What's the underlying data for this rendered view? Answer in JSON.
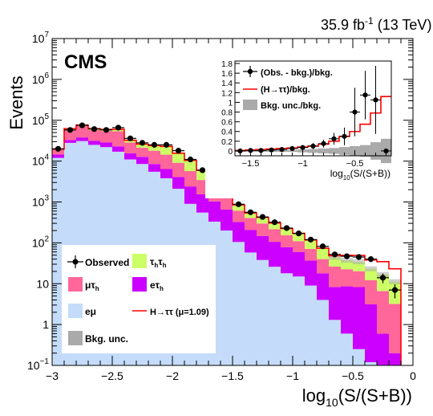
{
  "lumi_label": "35.9 fb",
  "lumi_sup": "-1",
  "lumi_energy": "(13 TeV)",
  "cms_label": "CMS",
  "colors": {
    "mutau": "#ff6699",
    "tautau": "#ccff66",
    "etau": "#cc00ff",
    "emu": "#c4dcfa",
    "signal": "#ff0000",
    "bkgunc": "#aaaaaa",
    "observed": "#000000"
  },
  "chart_data": [
    {
      "type": "bar",
      "stacked": true,
      "log_y": true,
      "xlabel_main": "log",
      "xlabel_sub": "10",
      "xlabel_rest": "(S/(S+B))",
      "ylabel": "Events",
      "xlim": [
        -3,
        0
      ],
      "ylim": [
        0.1,
        10000000
      ],
      "x_ticks": [
        -3,
        -2.5,
        -2,
        -1.5,
        -1,
        -0.5,
        0
      ],
      "x_tick_labels": [
        "−3",
        "−2.5",
        "−2",
        "−1.5",
        "−1",
        "−0.5",
        "0"
      ],
      "y_ticks": [
        0.1,
        1,
        10,
        100,
        1000,
        10000,
        100000,
        1000000,
        10000000
      ],
      "y_tick_labels": [
        {
          "base": "10",
          "exp": "−1"
        },
        {
          "base": "1",
          "exp": ""
        },
        {
          "base": "10",
          "exp": ""
        },
        {
          "base": "10",
          "exp": "2"
        },
        {
          "base": "10",
          "exp": "3"
        },
        {
          "base": "10",
          "exp": "4"
        },
        {
          "base": "10",
          "exp": "5"
        },
        {
          "base": "10",
          "exp": "6"
        },
        {
          "base": "10",
          "exp": "7"
        }
      ],
      "bin_edges": [
        -3.0,
        -2.9,
        -2.8,
        -2.7,
        -2.6,
        -2.5,
        -2.4,
        -2.3,
        -2.2,
        -2.1,
        -2.0,
        -1.9,
        -1.8,
        -1.7,
        -1.6,
        -1.5,
        -1.4,
        -1.3,
        -1.2,
        -1.1,
        -1.0,
        -0.9,
        -0.8,
        -0.7,
        -0.6,
        -0.5,
        -0.4,
        -0.3,
        -0.2,
        -0.1
      ],
      "stack_order": [
        "emu",
        "etau",
        "mutau",
        "tautau"
      ],
      "series": [
        {
          "key": "emu",
          "label": "eμ",
          "values": [
            12000,
            28000,
            31000,
            25000,
            22000,
            17000,
            11000,
            8500,
            5500,
            3800,
            2100,
            900,
            550,
            330,
            200,
            105,
            58,
            38,
            26,
            18,
            15,
            9,
            4,
            1.3,
            0.6,
            0.25,
            0.12,
            0.1,
            0.1
          ]
        },
        {
          "key": "etau",
          "label": "eτh",
          "values": [
            2500,
            5000,
            7000,
            6500,
            6500,
            6000,
            4500,
            4200,
            3000,
            2600,
            2000,
            1500,
            1000,
            700,
            450,
            220,
            150,
            110,
            80,
            60,
            45,
            28,
            14,
            7,
            8,
            8,
            3,
            0.5,
            0.1
          ]
        },
        {
          "key": "mutau",
          "label": "μτh",
          "values": [
            4500,
            26000,
            34000,
            26000,
            26000,
            31000,
            13000,
            8500,
            9500,
            8000,
            5000,
            3300,
            1900,
            1300,
            750,
            290,
            200,
            150,
            110,
            75,
            50,
            34,
            22,
            18,
            14,
            12,
            9,
            6,
            3
          ]
        },
        {
          "key": "tautau",
          "label": "τhτh",
          "values": [
            700,
            3500,
            4500,
            5000,
            5000,
            6000,
            3800,
            4800,
            6000,
            8500,
            6500,
            4700,
            2500,
            1500,
            700,
            230,
            130,
            120,
            90,
            70,
            60,
            45,
            32,
            18,
            15,
            14,
            11,
            10,
            8
          ]
        }
      ],
      "observed": {
        "label": "Observed",
        "x": [
          -2.95,
          -2.85,
          -2.75,
          -2.65,
          -2.55,
          -2.45,
          -2.35,
          -2.25,
          -2.15,
          -2.05,
          -1.95,
          -1.85,
          -1.75,
          -1.65,
          -1.55,
          -1.45,
          -1.35,
          -1.25,
          -1.15,
          -1.05,
          -0.95,
          -0.85,
          -0.75,
          -0.65,
          -0.55,
          -0.45,
          -0.35,
          -0.25,
          -0.15
        ],
        "y": [
          20000,
          58000,
          75000,
          61000,
          58000,
          66000,
          36000,
          28000,
          25000,
          25000,
          18000,
          11000,
          6000,
          3900,
          2100,
          880,
          560,
          430,
          320,
          230,
          170,
          120,
          82,
          52,
          47,
          45,
          40,
          14,
          7
        ]
      },
      "signal": {
        "label": "H→ττ (μ=1.09)",
        "label_base": "H→ττ (μ=1.09)"
      },
      "signal_excess": [
        0.5,
        0.8,
        1.0,
        1.0,
        1.0,
        1.0,
        0.9,
        0.8,
        1.0,
        1.0,
        1.0,
        0.8,
        0.7,
        0.6,
        0.5,
        0.4,
        0.4,
        0.4,
        0.4,
        0.4,
        1.0,
        1.5,
        2.0,
        4.0,
        12,
        15,
        15,
        18,
        12
      ],
      "legend": {
        "position": "bottom-left",
        "entries": [
          "Observed",
          "τhτh",
          "μτh",
          "eτh",
          "eμ",
          "H→ττ (μ=1.09)",
          "Bkg. unc."
        ],
        "observed": "Observed",
        "tautau_a": "τ",
        "tautau_b": "h",
        "tautau_c": "τ",
        "tautau_d": "h",
        "mutau_a": "μτ",
        "mutau_b": "h",
        "etau_a": "eτ",
        "etau_b": "h",
        "emu": "eμ",
        "signal": "H→ττ (μ=1.09)",
        "bkgunc": "Bkg. unc."
      }
    },
    {
      "type": "line",
      "inset": true,
      "position": "top-right",
      "xlabel_main": "log",
      "xlabel_sub": "10",
      "xlabel_rest": "(S/(S+B))",
      "xlim": [
        -1.65,
        -0.15
      ],
      "ylim": [
        -0.1,
        1.85
      ],
      "x_ticks": [
        -1.5,
        -1,
        -0.5
      ],
      "x_tick_labels": [
        "−1.5",
        "−1",
        "−0.5"
      ],
      "y_ticks": [
        0,
        0.2,
        0.4,
        0.6,
        0.8,
        1,
        1.2,
        1.4,
        1.6,
        1.8
      ],
      "y_tick_labels": [
        "0",
        "0.2",
        "0.4",
        "0.6",
        "0.8",
        "1",
        "1.2",
        "1.4",
        "1.6",
        "1.8"
      ],
      "bin_edges": [
        -1.65,
        -1.55,
        -1.45,
        -1.35,
        -1.25,
        -1.15,
        -1.05,
        -0.95,
        -0.85,
        -0.75,
        -0.65,
        -0.55,
        -0.45,
        -0.35,
        -0.25,
        -0.15
      ],
      "bkg_unc": [
        0.02,
        0.02,
        0.02,
        0.02,
        0.02,
        0.02,
        0.03,
        0.04,
        0.05,
        0.06,
        0.08,
        0.1,
        0.12,
        0.18,
        0.25
      ],
      "signal_ratio": [
        0.01,
        0.02,
        0.03,
        0.04,
        0.05,
        0.06,
        0.08,
        0.1,
        0.14,
        0.2,
        0.3,
        0.4,
        0.55,
        0.78,
        1.12
      ],
      "obs_ratio": {
        "x": [
          -1.6,
          -1.5,
          -1.4,
          -1.3,
          -1.2,
          -1.1,
          -1.0,
          -0.9,
          -0.8,
          -0.7,
          -0.6,
          -0.5,
          -0.4,
          -0.3,
          -0.2
        ],
        "y": [
          0.0,
          0.01,
          0.01,
          0.02,
          0.03,
          0.05,
          0.07,
          0.1,
          0.15,
          0.25,
          0.3,
          0.8,
          1.15,
          1.05,
          0.0
        ],
        "err": [
          0.02,
          0.02,
          0.02,
          0.02,
          0.03,
          0.04,
          0.05,
          0.06,
          0.08,
          0.12,
          0.18,
          0.5,
          0.5,
          0.7,
          0.0
        ]
      },
      "legend": {
        "position": "top-right",
        "obs": "(Obs. - bkg.)/bkg.",
        "signal": "(H→ττ)/bkg.",
        "bkgunc": "Bkg. unc./bkg."
      }
    }
  ]
}
